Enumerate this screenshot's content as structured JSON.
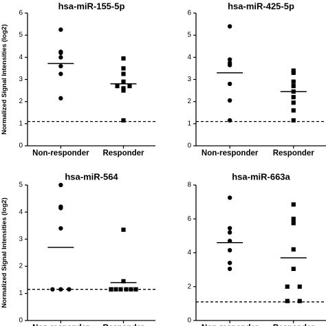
{
  "chart_data": [
    {
      "type": "scatter",
      "title": "hsa-miR-155-5p",
      "ylabel": "Normalized Signal Intensities (log2)",
      "ylim": [
        0,
        6
      ],
      "yticks": [
        "0",
        "1",
        "2",
        "3",
        "4",
        "5",
        "6"
      ],
      "categories": [
        "Non-responder",
        "Responder"
      ],
      "threshold": 1.1,
      "series": [
        {
          "category": "Non-responder",
          "marker": "circle",
          "values": [
            5.25,
            4.2,
            4.25,
            4.0,
            3.6,
            3.25,
            2.15
          ],
          "mean": 3.72
        },
        {
          "category": "Responder",
          "marker": "square",
          "values": [
            3.95,
            3.5,
            3.25,
            2.9,
            2.7,
            2.7,
            2.6,
            2.5,
            1.15
          ],
          "mean": 2.8
        }
      ]
    },
    {
      "type": "scatter",
      "title": "hsa-miR-425-5p",
      "ylabel": "",
      "ylim": [
        0,
        6
      ],
      "yticks": [
        "0",
        "1",
        "2",
        "3",
        "4",
        "5",
        "6"
      ],
      "categories": [
        "Non-responder",
        "Responder"
      ],
      "threshold": 1.1,
      "series": [
        {
          "category": "Non-responder",
          "marker": "circle",
          "values": [
            5.4,
            3.9,
            3.75,
            3.65,
            2.8,
            2.05,
            1.15
          ],
          "mean": 3.3
        },
        {
          "category": "Responder",
          "marker": "square",
          "values": [
            3.4,
            3.3,
            2.9,
            2.7,
            2.45,
            2.2,
            1.95,
            1.6,
            1.15
          ],
          "mean": 2.45
        }
      ]
    },
    {
      "type": "scatter",
      "title": "hsa-miR-564",
      "ylabel": "Normalized Signal Intensities (log2)",
      "ylim": [
        0,
        5
      ],
      "yticks": [
        "0",
        "1",
        "2",
        "3",
        "4",
        "5"
      ],
      "categories": [
        "Non-responder",
        "Responder"
      ],
      "threshold": 1.15,
      "series": [
        {
          "category": "Non-responder",
          "marker": "circle",
          "values": [
            5.0,
            4.2,
            4.15,
            3.4,
            1.15,
            1.15,
            1.15
          ],
          "mean": 2.7
        },
        {
          "category": "Responder",
          "marker": "square",
          "values": [
            3.35,
            1.45,
            1.15,
            1.15,
            1.15,
            1.15,
            1.15,
            1.15,
            1.15
          ],
          "mean": 1.4
        }
      ]
    },
    {
      "type": "scatter",
      "title": "hsa-miR-663a",
      "ylabel": "",
      "ylim": [
        0,
        8
      ],
      "yticks": [
        "0",
        "2",
        "4",
        "6",
        "8"
      ],
      "categories": [
        "Non-responder",
        "Responder"
      ],
      "threshold": 1.1,
      "series": [
        {
          "category": "Non-responder",
          "marker": "circle",
          "values": [
            7.25,
            5.45,
            5.2,
            4.7,
            4.15,
            3.4,
            3.05
          ],
          "mean": 4.6
        },
        {
          "category": "Responder",
          "marker": "square",
          "values": [
            6.85,
            6.0,
            5.75,
            4.2,
            3.05,
            2.0,
            2.0,
            1.15,
            1.15
          ],
          "mean": 3.7
        }
      ]
    }
  ]
}
